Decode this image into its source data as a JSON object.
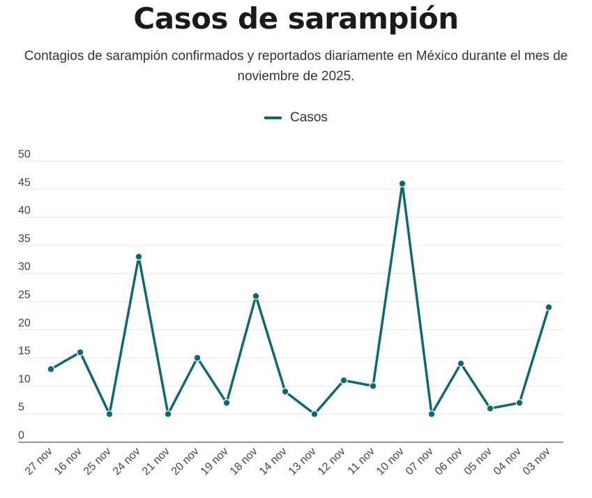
{
  "title": "Casos de sarampión",
  "subtitle": "Contagios de sarampión confirmados y reportados diariamente en México durante el mes de noviembre de 2025.",
  "colors": {
    "series": "#0e6873",
    "grid": "#e6e6e6",
    "axis": "#555555"
  },
  "chart_data": {
    "type": "line",
    "title": "Casos de sarampión",
    "subtitle": "Contagios de sarampión confirmados y reportados diariamente en México durante el mes de noviembre de 2025.",
    "xlabel": "",
    "ylabel": "",
    "legend": {
      "position": "top-center",
      "entries": [
        "Casos"
      ]
    },
    "grid": true,
    "ylim": [
      0,
      50
    ],
    "yticks": [
      "0",
      "5",
      "10",
      "15",
      "20",
      "25",
      "30",
      "35",
      "40",
      "45",
      "50"
    ],
    "categories": [
      "27 nov",
      "16 nov",
      "25 nov",
      "24 nov",
      "21 nov",
      "20 nov",
      "19 nov",
      "18 nov",
      "14 nov",
      "13 nov",
      "12 nov",
      "11 nov",
      "10 nov",
      "07 nov",
      "06 nov",
      "05 nov",
      "04 nov",
      "03 nov"
    ],
    "series": [
      {
        "name": "Casos",
        "values": [
          13,
          16,
          5,
          33,
          5,
          15,
          7,
          26,
          9,
          5,
          11,
          10,
          46,
          5,
          14,
          6,
          7,
          24
        ]
      }
    ]
  }
}
